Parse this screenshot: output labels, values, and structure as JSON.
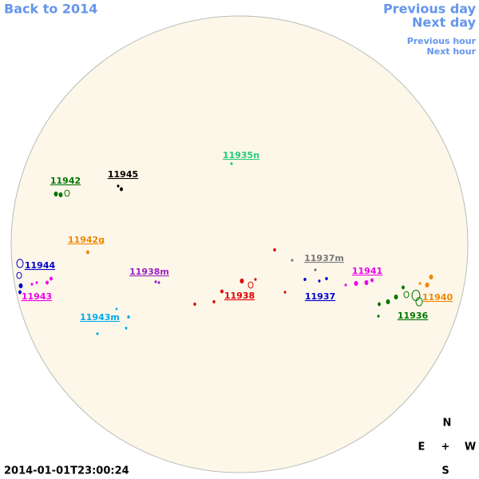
{
  "nav": {
    "back": "Back to 2014",
    "previous_day": "Previous day",
    "next_day": "Next day",
    "previous_hour": "Previous hour",
    "next_hour": "Next hour"
  },
  "regions": [
    {
      "label": "11935n",
      "color": "#22cc77"
    },
    {
      "label": "11942",
      "color": "#007700"
    },
    {
      "label": "11945",
      "color": "#000000"
    },
    {
      "label": "11942g",
      "color": "#ee8800"
    },
    {
      "label": "11944",
      "color": "#0000cc"
    },
    {
      "label": "11943",
      "color": "#ee00ee"
    },
    {
      "label": "11938m",
      "color": "#9922bb"
    },
    {
      "label": "11938",
      "color": "#dd0000"
    },
    {
      "label": "11937m",
      "color": "#777777"
    },
    {
      "label": "11937",
      "color": "#0000cc"
    },
    {
      "label": "11941",
      "color": "#ee00ee"
    },
    {
      "label": "11940",
      "color": "#ee8800"
    },
    {
      "label": "11936",
      "color": "#007700"
    },
    {
      "label": "11943m",
      "color": "#00aaee"
    }
  ],
  "compass": {
    "north": "N",
    "east": "E",
    "center": "+",
    "west": "W",
    "south": "S"
  },
  "timestamp": "2014-01-01T23:00:24"
}
